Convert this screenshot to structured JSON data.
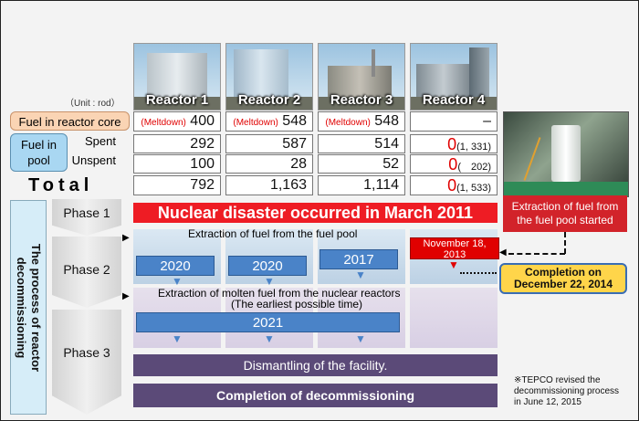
{
  "unit_label": "（Unit : rod）",
  "reactors": [
    {
      "label": "Reactor 1",
      "core_prefix": "(Meltdown)",
      "core": "400",
      "spent": "292",
      "unspent": "100",
      "total": "792"
    },
    {
      "label": "Reactor 2",
      "core_prefix": "(Meltdown)",
      "core": "548",
      "spent": "587",
      "unspent": "28",
      "total": "1,163"
    },
    {
      "label": "Reactor 3",
      "core_prefix": "(Meltdown)",
      "core": "548",
      "spent": "514",
      "unspent": "52",
      "total": "1,114"
    },
    {
      "label": "Reactor 4",
      "core_prefix": "",
      "core": "–",
      "spent": "0",
      "spent_paren": "(1, 331)",
      "unspent": "0",
      "unspent_paren": "(　202)",
      "total": "0",
      "total_paren": "(1, 533)"
    }
  ],
  "rows": {
    "core": "Fuel in reactor core",
    "pool": "Fuel in pool",
    "spent": "Spent",
    "unspent": "Unspent",
    "total": "Total"
  },
  "side_label_line1": "The process of reactor",
  "side_label_line2": "decommissioning",
  "phases": [
    "Phase 1",
    "Phase 2",
    "Phase 3"
  ],
  "phase1_banner": "Nuclear disaster occurred in March 2011",
  "phase2_title": "Extraction of fuel from the fuel pool",
  "phase2_years": [
    "2020",
    "2020",
    "2017"
  ],
  "phase2_r4_date": "November 18, 2013",
  "phase3_title": "Extraction of molten fuel from the nuclear reactors",
  "phase3_subtitle": "(The earliest possible time)",
  "phase3_year": "2021",
  "dismantling": "Dismantling of the facility.",
  "completion": "Completion of decommissioning",
  "photo_caption": "Extraction of fuel from the fuel pool started",
  "completion_callout": "Completion on December 22, 2014",
  "tepco_note": "※TEPCO revised the decommissioning process in June 12, 2015"
}
